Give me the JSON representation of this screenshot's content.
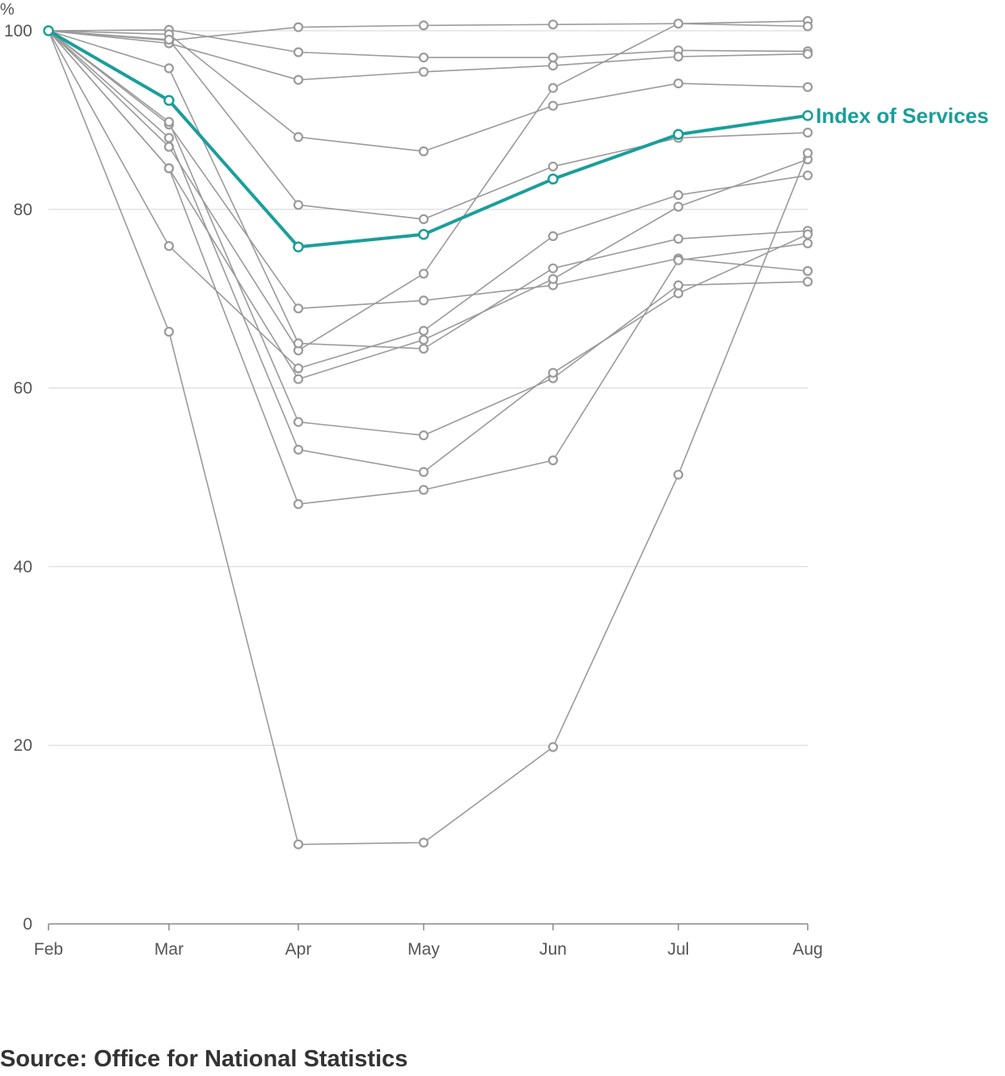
{
  "source": "Source: Office for National Statistics",
  "colors": {
    "grey": "#9a9a9a",
    "highlight": "#1a9e9a",
    "grid": "#d6d6d6",
    "axis": "#888888",
    "text": "#555555"
  },
  "chart_data": {
    "type": "line",
    "title": "",
    "xlabel": "",
    "ylabel": "%",
    "ylim": [
      0,
      100
    ],
    "y_ticks": [
      0,
      20,
      40,
      60,
      80,
      100
    ],
    "grid": "horizontal",
    "categories": [
      "Feb",
      "Mar",
      "Apr",
      "May",
      "Jun",
      "Jul",
      "Aug"
    ],
    "series": [
      {
        "values": [
          100,
          98.9,
          100.4,
          100.6,
          100.7,
          100.8,
          101.1
        ]
      },
      {
        "values": [
          100,
          100.1,
          97.6,
          97.0,
          97.0,
          97.8,
          97.7
        ]
      },
      {
        "values": [
          100,
          98.6,
          94.5,
          95.4,
          96.1,
          97.1,
          97.4
        ]
      },
      {
        "values": [
          100,
          99.6,
          88.1,
          86.5,
          91.6,
          94.1,
          93.7
        ]
      },
      {
        "values": [
          100,
          99.0,
          80.5,
          78.9,
          84.8,
          88.0,
          88.6
        ]
      },
      {
        "values": [
          100,
          87.0,
          64.2,
          72.8,
          93.6,
          100.8,
          100.5
        ]
      },
      {
        "values": [
          100,
          89.5,
          68.9,
          69.8,
          71.5,
          74.5,
          73.1
        ]
      },
      {
        "values": [
          100,
          75.9,
          62.2,
          66.4,
          77.0,
          81.6,
          83.8
        ]
      },
      {
        "values": [
          100,
          95.8,
          65.0,
          64.4,
          73.4,
          76.7,
          77.6
        ]
      },
      {
        "values": [
          100,
          84.6,
          61.0,
          65.4,
          72.2,
          80.3,
          85.6
        ]
      },
      {
        "values": [
          100,
          89.8,
          56.2,
          54.7,
          61.1,
          71.5,
          71.9
        ]
      },
      {
        "values": [
          100,
          88.0,
          53.1,
          50.6,
          61.7,
          70.6,
          77.2
        ]
      },
      {
        "values": [
          100,
          84.6,
          47.0,
          48.6,
          51.9,
          74.3,
          76.2
        ]
      },
      {
        "values": [
          100,
          66.3,
          8.9,
          9.1,
          19.8,
          50.3,
          86.3
        ]
      },
      {
        "name": "Index of Services",
        "highlight": true,
        "values": [
          100,
          92.2,
          75.8,
          77.2,
          83.4,
          88.4,
          90.5
        ]
      }
    ]
  }
}
